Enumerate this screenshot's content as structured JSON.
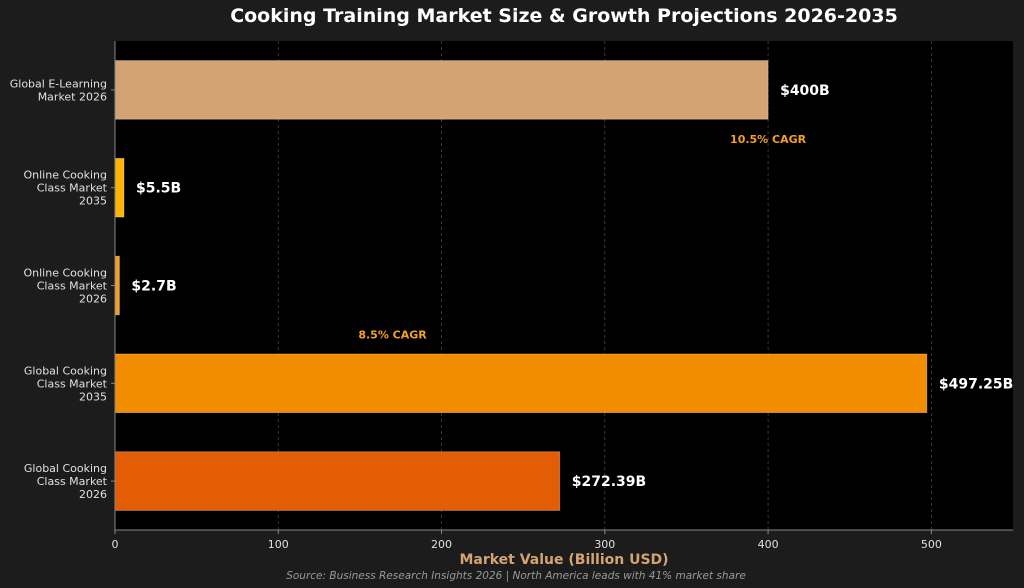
{
  "chart_data": {
    "type": "bar",
    "orientation": "horizontal",
    "title": "Cooking Training Market Size & Growth Projections 2026-2035",
    "xlabel": "Market Value (Billion USD)",
    "ylabel": "",
    "xlim": [
      0,
      550
    ],
    "xticks": [
      0,
      100,
      200,
      300,
      400,
      500
    ],
    "grid": "x-dashed",
    "categories": [
      [
        "Global E-Learning",
        "Market 2026"
      ],
      [
        "Online Cooking",
        "Class Market",
        "2035"
      ],
      [
        "Online Cooking",
        "Class Market",
        "2026"
      ],
      [
        "Global Cooking",
        "Class Market",
        "2035"
      ],
      [
        "Global Cooking",
        "Class Market",
        "2026"
      ]
    ],
    "values": [
      400,
      5.5,
      2.7,
      497.25,
      272.39
    ],
    "value_labels": [
      "$400B",
      "$5.5B",
      "$2.7B",
      "$497.25B",
      "$272.39B"
    ],
    "bar_colors": [
      "#d4a373",
      "#ffb300",
      "#f5a020",
      "#f28c00",
      "#e35d04"
    ],
    "annotations": [
      {
        "text": "10.5% CAGR",
        "x": 400,
        "between": [
          0,
          1
        ]
      },
      {
        "text": "8.5% CAGR",
        "x": 170,
        "between": [
          2,
          3
        ]
      }
    ],
    "source": "Source: Business Research Insights 2026 | North America leads with 41% market share"
  },
  "colors": {
    "background": "#1c1c1c",
    "plot_background": "#000000",
    "title": "#ffffff",
    "axis_label": "#d4a373",
    "annotation": "#f5a020",
    "value_label": "#ffffff",
    "tick": "#e0e0e0",
    "source": "#999999"
  }
}
